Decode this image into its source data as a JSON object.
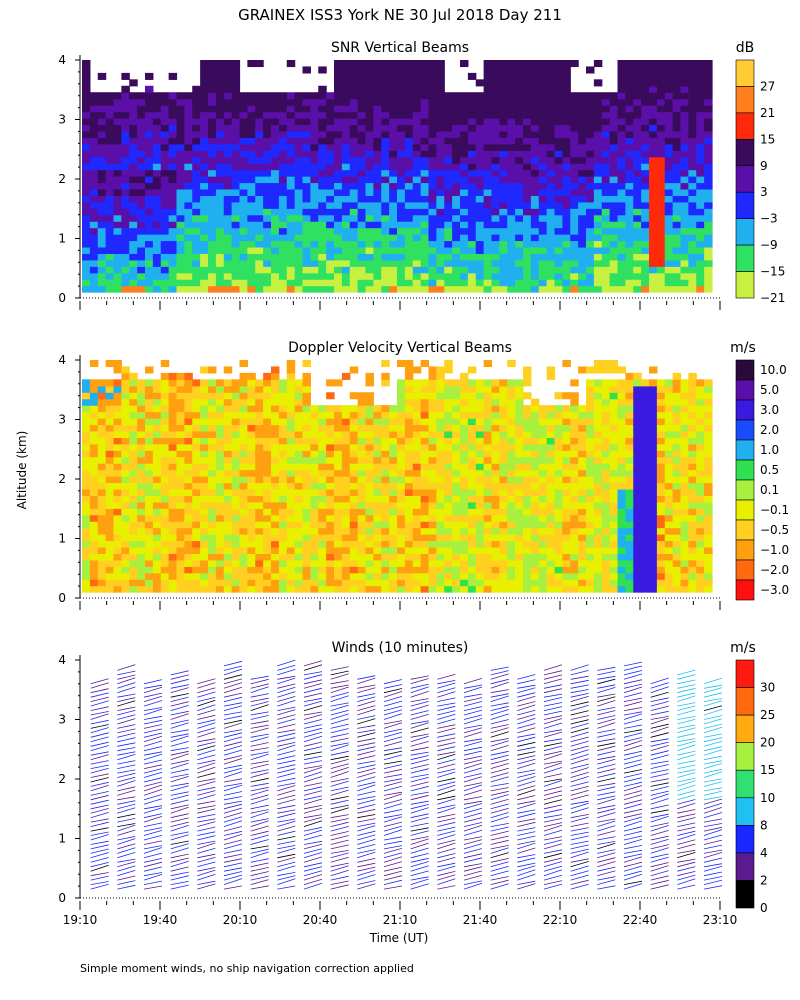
{
  "figure": {
    "title": "GRAINEX ISS3 York NE  30 Jul 2018 Day 211",
    "ylabel": "Altitude (km)",
    "xlabel": "Time (UT)",
    "footnote": "Simple moment winds, no ship navigation correction applied",
    "x_ticks": [
      "19:10",
      "19:40",
      "20:10",
      "20:40",
      "21:10",
      "21:40",
      "22:10",
      "22:40",
      "23:10"
    ],
    "y_ticks": [
      "0",
      "1",
      "2",
      "3",
      "4"
    ]
  },
  "chart_data": [
    {
      "type": "heatmap",
      "title": "SNR Vertical Beams",
      "unit": "dB",
      "x_range": [
        "19:10",
        "23:10"
      ],
      "ylim": [
        0,
        4
      ],
      "colorbar": {
        "labels": [
          "27",
          "21",
          "15",
          "9",
          "3",
          "−3",
          "−9",
          "−15",
          "−21"
        ],
        "colors": [
          "#ffcc33",
          "#ff7f1f",
          "#ff2a0a",
          "#3a0a5c",
          "#5a10a8",
          "#1e28ff",
          "#20b0f0",
          "#30e060",
          "#c8f040"
        ]
      }
    },
    {
      "type": "heatmap",
      "title": "Doppler Velocity Vertical Beams",
      "unit": "m/s",
      "x_range": [
        "19:10",
        "23:10"
      ],
      "ylim": [
        0,
        4
      ],
      "colorbar": {
        "labels": [
          "10.0",
          "5.0",
          "3.0",
          "2.0",
          "1.0",
          "0.5",
          "0.1",
          "−0.1",
          "−0.5",
          "−1.0",
          "−2.0",
          "−3.0"
        ],
        "colors": [
          "#2a0a3a",
          "#5a10a8",
          "#3a1adf",
          "#1a4cff",
          "#20b0f0",
          "#30e050",
          "#a8f040",
          "#e8f000",
          "#ffd020",
          "#ffa010",
          "#ff6a10",
          "#ff1010"
        ]
      }
    },
    {
      "type": "scatter",
      "title": "Winds (10 minutes)",
      "unit": "m/s",
      "interval_minutes": 10,
      "x_range": [
        "19:10",
        "23:10"
      ],
      "ylim": [
        0,
        4
      ],
      "colorbar": {
        "labels": [
          "30",
          "25",
          "20",
          "15",
          "10",
          "8",
          "4",
          "2",
          "0"
        ],
        "colors": [
          "#ff1a10",
          "#ff6a10",
          "#ffaa10",
          "#a8f040",
          "#30e070",
          "#20c0f0",
          "#1a28ff",
          "#5a1a90",
          "#000000"
        ]
      }
    }
  ]
}
